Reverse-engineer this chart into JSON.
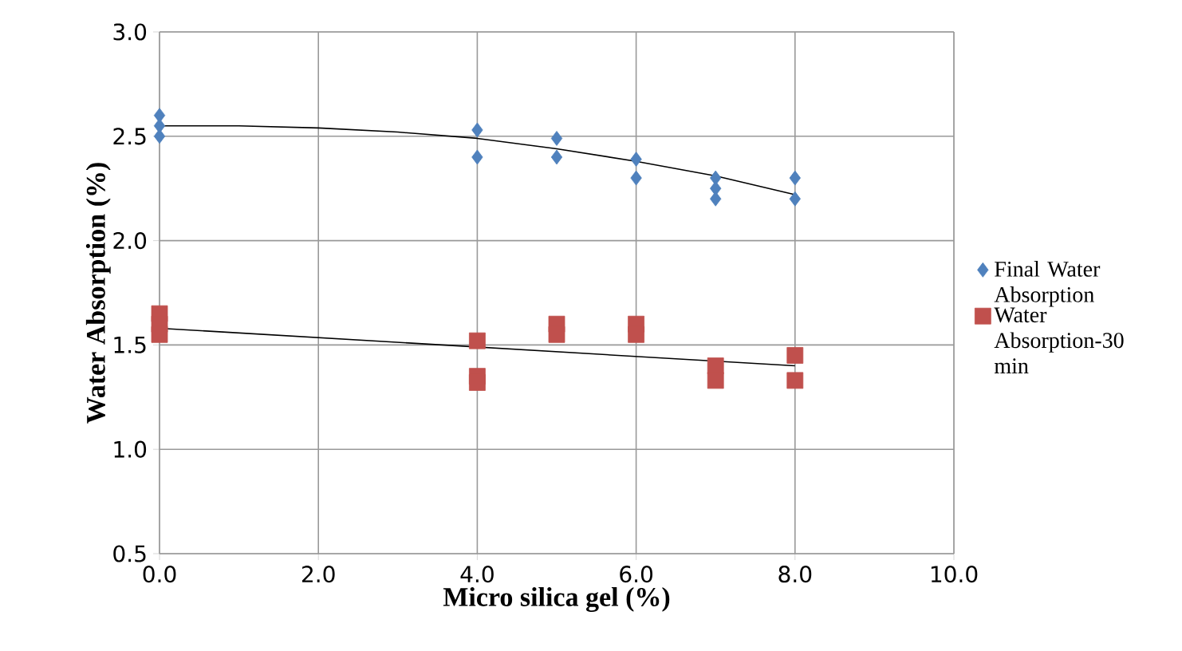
{
  "chart_data": {
    "type": "scatter",
    "xlabel": "Micro silica gel (%)",
    "ylabel": "Water Absorption (%)",
    "xlim": [
      0,
      10
    ],
    "ylim": [
      0.5,
      3.0
    ],
    "xticks": [
      {
        "value": 0,
        "label": "0.0"
      },
      {
        "value": 2,
        "label": "2.0"
      },
      {
        "value": 4,
        "label": "4.0"
      },
      {
        "value": 6,
        "label": "6.0"
      },
      {
        "value": 8,
        "label": "8.0"
      },
      {
        "value": 10,
        "label": "10.0"
      }
    ],
    "yticks": [
      {
        "value": 0.5,
        "label": "0.5"
      },
      {
        "value": 1.0,
        "label": "1.0"
      },
      {
        "value": 1.5,
        "label": "1.5"
      },
      {
        "value": 2.0,
        "label": "2.0"
      },
      {
        "value": 2.5,
        "label": "2.5"
      },
      {
        "value": 3.0,
        "label": "3.0"
      }
    ],
    "grid": true,
    "legend": "right",
    "series": [
      {
        "name": "Final Water Absorption",
        "color": "#4f81bd",
        "marker": "diamond",
        "x": [
          0,
          0,
          0,
          4,
          4,
          5,
          5,
          6,
          6,
          7,
          7,
          7,
          8,
          8
        ],
        "values": [
          2.6,
          2.55,
          2.5,
          2.53,
          2.4,
          2.49,
          2.4,
          2.39,
          2.3,
          2.3,
          2.25,
          2.2,
          2.3,
          2.2
        ]
      },
      {
        "name": "Water Absorption-30 min",
        "color": "#c0504d",
        "marker": "square",
        "x": [
          0,
          0,
          0,
          4,
          4,
          4,
          5,
          5,
          6,
          6,
          7,
          7,
          8,
          8
        ],
        "values": [
          1.65,
          1.6,
          1.55,
          1.52,
          1.35,
          1.32,
          1.6,
          1.55,
          1.6,
          1.55,
          1.4,
          1.33,
          1.45,
          1.33
        ]
      },
      {
        "type": "line",
        "color": "#000000",
        "marker": "none",
        "x": [
          0,
          1,
          2,
          3,
          4,
          5,
          6,
          7,
          8
        ],
        "values": [
          2.55,
          2.55,
          2.54,
          2.52,
          2.49,
          2.44,
          2.38,
          2.31,
          2.22
        ]
      },
      {
        "type": "line",
        "color": "#000000",
        "marker": "none",
        "x": [
          0,
          8
        ],
        "values": [
          1.58,
          1.4
        ]
      }
    ]
  }
}
